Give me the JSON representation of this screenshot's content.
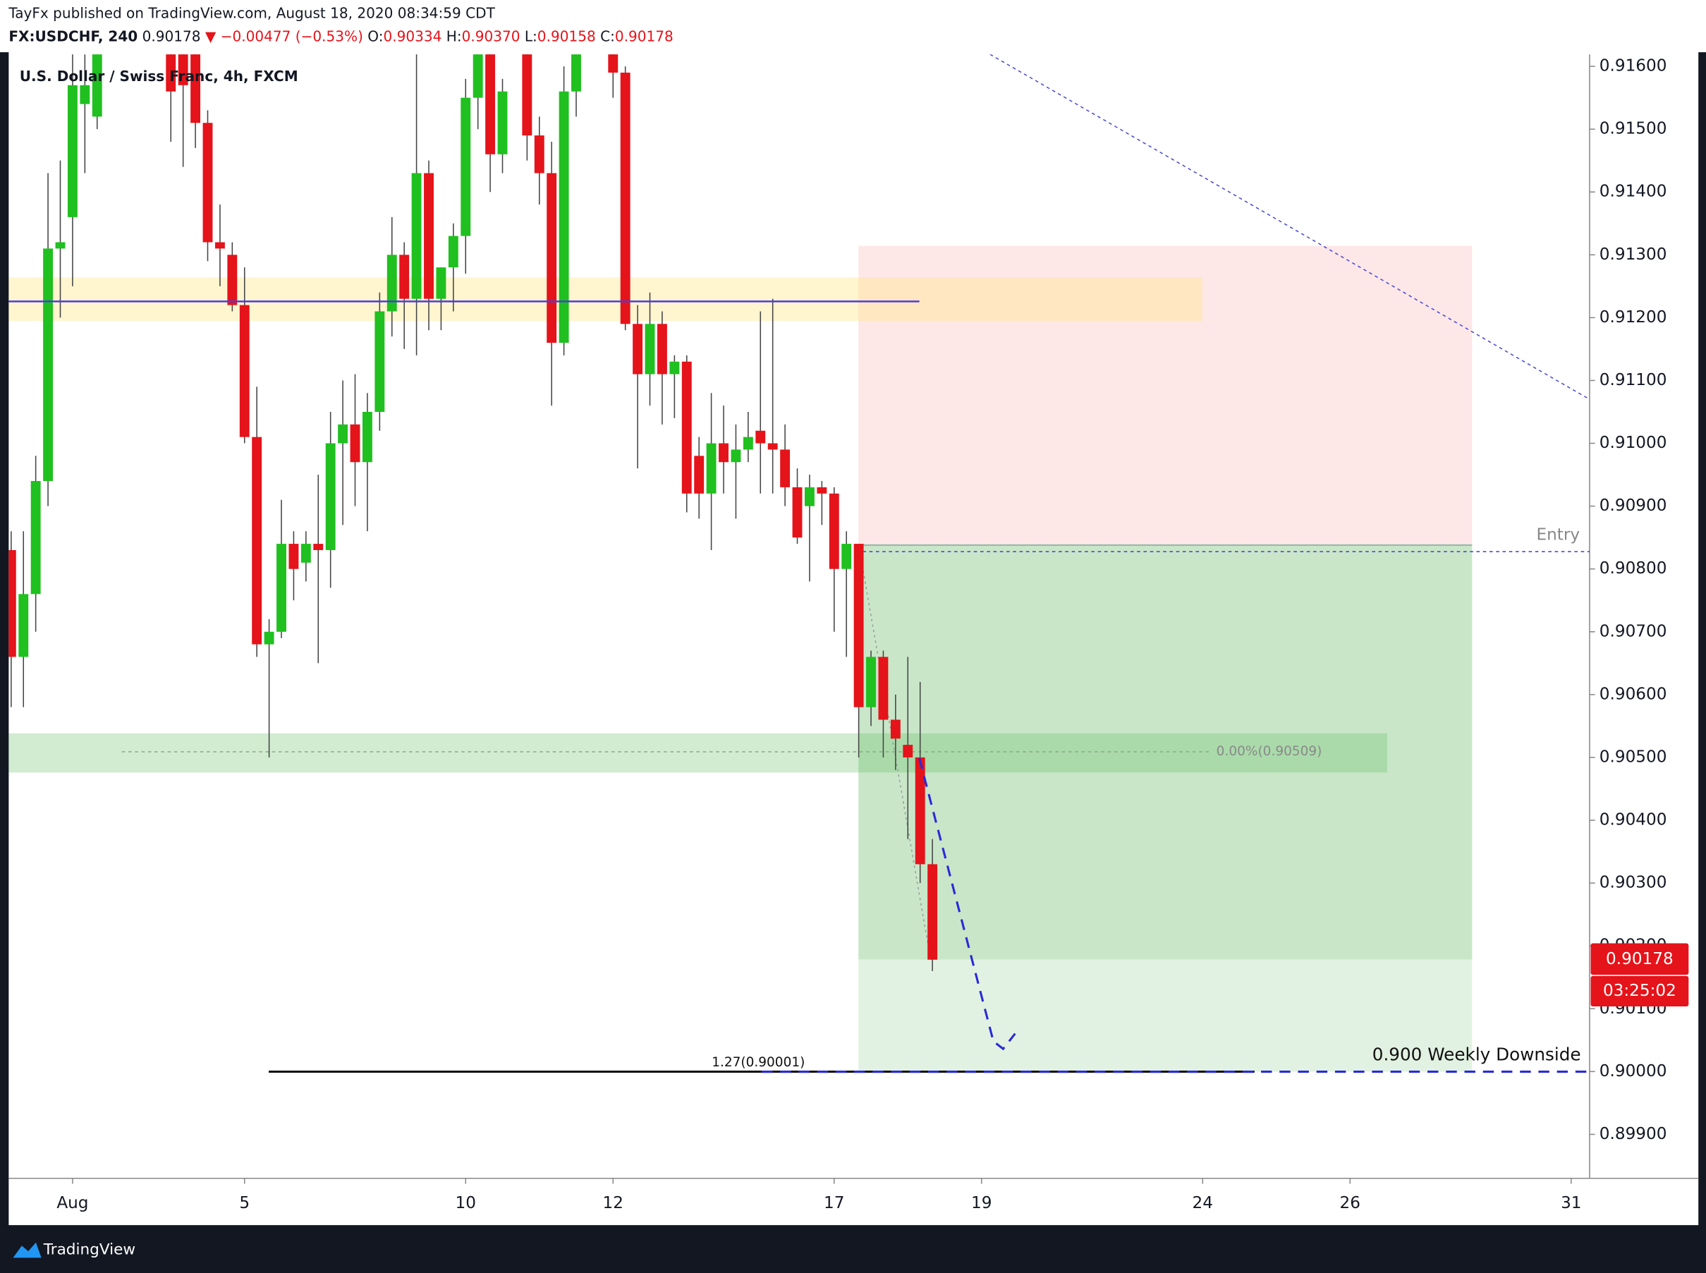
{
  "header": {
    "publisher": "TayFx published on TradingView.com, August 18, 2020 08:34:59 CDT",
    "symbol": "FX:USDCHF, 240",
    "last": "0.90178",
    "change": "▼ −0.00477 (−0.53%)",
    "o_label": "O:",
    "o": "0.90334",
    "h_label": "H:",
    "h": "0.90370",
    "l_label": "L:",
    "l": "0.90158",
    "c_label": "C:",
    "c": "0.90178",
    "brand": "TradingView"
  },
  "chart_data": {
    "type": "candlestick",
    "title": "U.S. Dollar / Swiss Franc, 4h, FXCM",
    "up_color": "#1fc01f",
    "down_color": "#e5131a",
    "wick_color": "#444444",
    "x": [
      -5,
      -4,
      -3,
      -2,
      -1,
      0,
      1,
      2,
      8,
      9,
      10,
      11,
      12,
      13,
      14,
      15,
      16,
      17,
      18,
      19,
      20,
      21,
      22,
      23,
      24,
      25,
      26,
      27,
      28,
      29,
      30,
      31,
      32,
      33,
      34,
      35,
      37,
      38,
      39,
      40,
      41,
      44,
      45,
      46,
      47,
      48,
      49,
      50,
      51,
      52,
      53,
      54,
      55,
      56,
      57,
      58,
      59,
      60,
      61,
      62,
      63,
      64,
      65,
      66,
      67,
      68,
      69,
      70
    ],
    "open": [
      0.9083,
      0.9066,
      0.9076,
      0.9094,
      0.9131,
      0.9136,
      0.9154,
      0.9152,
      0.9168,
      0.9163,
      0.9165,
      0.9151,
      0.9132,
      0.913,
      0.9122,
      0.9101,
      0.9068,
      0.907,
      0.9084,
      0.9081,
      0.9084,
      0.9083,
      0.91,
      0.9103,
      0.9097,
      0.9105,
      0.9121,
      0.913,
      0.9123,
      0.9143,
      0.9123,
      0.9128,
      0.9133,
      0.9155,
      0.9165,
      0.9146,
      0.9165,
      0.9149,
      0.9143,
      0.9116,
      0.9156,
      0.9165,
      0.9159,
      0.9119,
      0.9111,
      0.9119,
      0.9111,
      0.9113,
      0.9098,
      0.9092,
      0.91,
      0.9097,
      0.9099,
      0.9102,
      0.91,
      0.9099,
      0.9093,
      0.909,
      0.9093,
      0.9092,
      0.908,
      0.9084,
      0.9058,
      0.9066,
      0.9056,
      0.9052,
      0.905,
      0.9033
    ],
    "high": [
      0.9086,
      0.9086,
      0.9098,
      0.9143,
      0.9145,
      0.9165,
      0.9165,
      0.9168,
      0.917,
      0.9168,
      0.9168,
      0.9153,
      0.9138,
      0.9132,
      0.9128,
      0.9109,
      0.9072,
      0.9091,
      0.9086,
      0.9086,
      0.9095,
      0.9105,
      0.911,
      0.9111,
      0.9108,
      0.9124,
      0.9136,
      0.9132,
      0.9163,
      0.9145,
      0.9128,
      0.9135,
      0.9158,
      0.9168,
      0.9168,
      0.9158,
      0.9168,
      0.9152,
      0.9148,
      0.916,
      0.9166,
      0.9168,
      0.916,
      0.9122,
      0.9124,
      0.9121,
      0.9114,
      0.9114,
      0.9101,
      0.9108,
      0.9106,
      0.9103,
      0.9105,
      0.9121,
      0.9123,
      0.9103,
      0.9096,
      0.9095,
      0.9094,
      0.9093,
      0.9086,
      0.9084,
      0.9067,
      0.9067,
      0.906,
      0.9066,
      0.9062,
      0.9037
    ],
    "low": [
      0.9058,
      0.9058,
      0.907,
      0.909,
      0.912,
      0.9125,
      0.9143,
      0.915,
      0.9148,
      0.9144,
      0.9147,
      0.9129,
      0.9125,
      0.9121,
      0.91,
      0.9066,
      0.905,
      0.9069,
      0.9075,
      0.9078,
      0.9065,
      0.9077,
      0.9087,
      0.909,
      0.9086,
      0.9102,
      0.9117,
      0.9115,
      0.9114,
      0.9118,
      0.9118,
      0.9121,
      0.9127,
      0.915,
      0.914,
      0.9143,
      0.9145,
      0.9138,
      0.9106,
      0.9114,
      0.9152,
      0.9155,
      0.9118,
      0.9096,
      0.9106,
      0.9103,
      0.9104,
      0.9089,
      0.9088,
      0.9083,
      0.9092,
      0.9088,
      0.9097,
      0.9092,
      0.9092,
      0.909,
      0.9084,
      0.9078,
      0.9087,
      0.907,
      0.9066,
      0.905,
      0.9055,
      0.905,
      0.9048,
      0.9037,
      0.903,
      0.9016
    ],
    "close": [
      0.9066,
      0.9076,
      0.9094,
      0.9131,
      0.9132,
      0.9157,
      0.9157,
      0.9165,
      0.9156,
      0.9157,
      0.9151,
      0.9132,
      0.9131,
      0.9122,
      0.9101,
      0.9068,
      0.907,
      0.9084,
      0.908,
      0.9084,
      0.9083,
      0.91,
      0.9103,
      0.9097,
      0.9105,
      0.9121,
      0.913,
      0.9123,
      0.9143,
      0.9123,
      0.9128,
      0.9133,
      0.9155,
      0.9163,
      0.9146,
      0.9156,
      0.9149,
      0.9143,
      0.9116,
      0.9156,
      0.9164,
      0.9159,
      0.9119,
      0.9111,
      0.9119,
      0.9111,
      0.9113,
      0.9092,
      0.9092,
      0.91,
      0.9097,
      0.9099,
      0.9101,
      0.91,
      0.9099,
      0.9093,
      0.9085,
      0.9093,
      0.9092,
      0.908,
      0.9084,
      0.9058,
      0.9066,
      0.9056,
      0.9053,
      0.905,
      0.9033,
      0.90178
    ],
    "xlim": [
      -5.2,
      123.5
    ],
    "xticks": [
      {
        "value": 0,
        "label": "Aug"
      },
      {
        "value": 14,
        "label": "5"
      },
      {
        "value": 32,
        "label": "10"
      },
      {
        "value": 44,
        "label": "12"
      },
      {
        "value": 62,
        "label": "17"
      },
      {
        "value": 74,
        "label": "19"
      },
      {
        "value": 92,
        "label": "24"
      },
      {
        "value": 104,
        "label": "26"
      },
      {
        "value": 122,
        "label": "31"
      }
    ],
    "ylim": [
      0.8983,
      0.91619
    ],
    "yticks": [
      {
        "value": 0.899,
        "label": "0.89900"
      },
      {
        "value": 0.9,
        "label": "0.90000"
      },
      {
        "value": 0.901,
        "label": "0.90100"
      },
      {
        "value": 0.902,
        "label": "0.90200"
      },
      {
        "value": 0.903,
        "label": "0.90300"
      },
      {
        "value": 0.904,
        "label": "0.90400"
      },
      {
        "value": 0.905,
        "label": "0.90500"
      },
      {
        "value": 0.906,
        "label": "0.90600"
      },
      {
        "value": 0.907,
        "label": "0.90700"
      },
      {
        "value": 0.908,
        "label": "0.90800"
      },
      {
        "value": 0.909,
        "label": "0.90900"
      },
      {
        "value": 0.91,
        "label": "0.91000"
      },
      {
        "value": 0.911,
        "label": "0.91100"
      },
      {
        "value": 0.912,
        "label": "0.91200"
      },
      {
        "value": 0.913,
        "label": "0.91300"
      },
      {
        "value": 0.914,
        "label": "0.91400"
      },
      {
        "value": 0.915,
        "label": "0.91500"
      },
      {
        "value": 0.916,
        "label": "0.91600"
      }
    ],
    "annotations": {
      "entry": "Entry",
      "fib0": "0.00%(0.90509)",
      "fib127": "1.27(0.90001)",
      "target": "0.900 Weekly Downside",
      "price_tag": "0.90178",
      "countdown": "03:25:02"
    }
  }
}
